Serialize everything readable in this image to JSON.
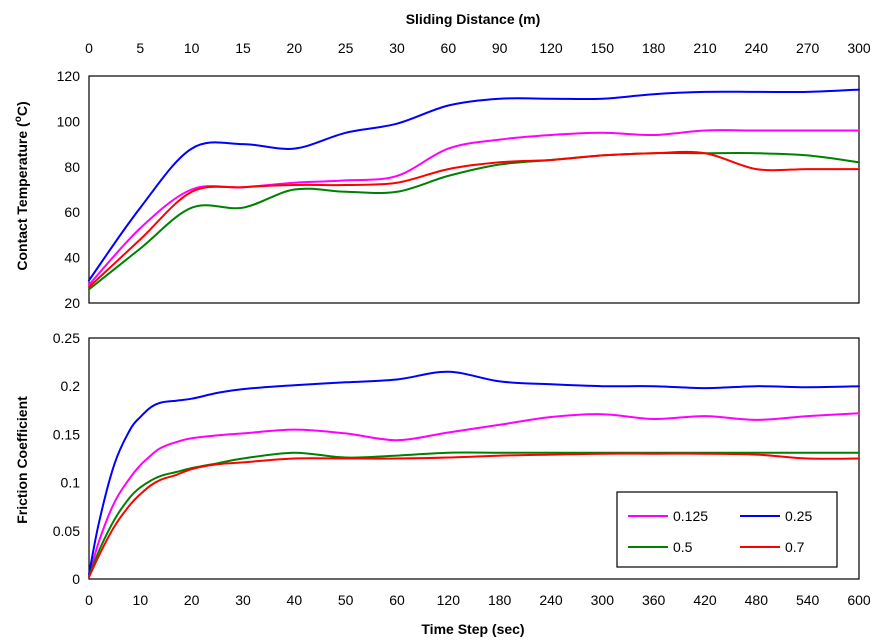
{
  "chart_data": [
    {
      "type": "line",
      "panel": "top",
      "xlabel_top": "Sliding Distance (m)",
      "ylabel": "Contact Temperature (°C)",
      "ylim": [
        20,
        120
      ],
      "yticks": [
        "20",
        "40",
        "60",
        "80",
        "100",
        "120"
      ],
      "x_top_ticks": [
        "0",
        "5",
        "10",
        "15",
        "20",
        "25",
        "30",
        "60",
        "90",
        "120",
        "150",
        "180",
        "210",
        "240",
        "270",
        "300"
      ],
      "x": [
        0,
        10,
        20,
        30,
        40,
        50,
        60,
        120,
        180,
        240,
        300,
        360,
        420,
        480,
        540,
        600
      ],
      "series": [
        {
          "name": "0.125",
          "color": "#ff00ff",
          "values": [
            28,
            53,
            70,
            71,
            73,
            74,
            76,
            88,
            92,
            94,
            95,
            94,
            96,
            96,
            96,
            96
          ]
        },
        {
          "name": "0.25",
          "color": "#0000ff",
          "values": [
            30,
            62,
            88,
            90,
            88,
            95,
            99,
            107,
            110,
            110,
            110,
            112,
            113,
            113,
            113,
            114
          ]
        },
        {
          "name": "0.5",
          "color": "#008000",
          "values": [
            26,
            44,
            62,
            62,
            70,
            69,
            69,
            76,
            81,
            83,
            85,
            86,
            86,
            86,
            85,
            82
          ]
        },
        {
          "name": "0.7",
          "color": "#ff0000",
          "values": [
            27,
            48,
            69,
            71,
            72,
            72,
            73,
            79,
            82,
            83,
            85,
            86,
            86,
            79,
            79,
            79
          ]
        }
      ]
    },
    {
      "type": "line",
      "panel": "bottom",
      "xlabel": "Time Step (sec)",
      "ylabel": "Friction Coefficient",
      "ylim": [
        0,
        0.25
      ],
      "yticks": [
        "0",
        "0.05",
        "0.1",
        "0.15",
        "0.2",
        "0.25"
      ],
      "xticks": [
        "0",
        "10",
        "20",
        "30",
        "40",
        "50",
        "60",
        "120",
        "180",
        "240",
        "300",
        "360",
        "420",
        "480",
        "540",
        "600"
      ],
      "x": [
        0,
        2,
        5,
        8,
        10,
        12,
        14,
        17,
        20,
        25,
        30,
        40,
        50,
        60,
        120,
        180,
        240,
        300,
        360,
        420,
        480,
        540,
        600
      ],
      "series": [
        {
          "name": "0.125",
          "color": "#ff00ff",
          "values": [
            0.003,
            0.04,
            0.08,
            0.105,
            0.118,
            0.128,
            0.136,
            0.142,
            0.146,
            0.149,
            0.151,
            0.155,
            0.151,
            0.144,
            0.152,
            0.16,
            0.168,
            0.171,
            0.166,
            0.169,
            0.165,
            0.169,
            0.172
          ]
        },
        {
          "name": "0.25",
          "color": "#0000ff",
          "values": [
            0.005,
            0.06,
            0.12,
            0.155,
            0.168,
            0.178,
            0.183,
            0.185,
            0.187,
            0.193,
            0.197,
            0.201,
            0.204,
            0.207,
            0.215,
            0.205,
            0.202,
            0.2,
            0.2,
            0.198,
            0.2,
            0.199,
            0.2
          ]
        },
        {
          "name": "0.5",
          "color": "#008000",
          "values": [
            0.003,
            0.03,
            0.062,
            0.085,
            0.095,
            0.102,
            0.107,
            0.111,
            0.115,
            0.12,
            0.125,
            0.131,
            0.126,
            0.128,
            0.131,
            0.131,
            0.131,
            0.131,
            0.131,
            0.131,
            0.131,
            0.131,
            0.131
          ]
        },
        {
          "name": "0.7",
          "color": "#ff0000",
          "values": [
            0.002,
            0.025,
            0.055,
            0.077,
            0.088,
            0.097,
            0.103,
            0.108,
            0.114,
            0.119,
            0.121,
            0.125,
            0.125,
            0.125,
            0.126,
            0.128,
            0.129,
            0.13,
            0.13,
            0.13,
            0.129,
            0.125,
            0.125
          ]
        }
      ]
    }
  ],
  "legend": {
    "placement": "bottom-right",
    "entries": [
      {
        "label": "0.125",
        "color": "#ff00ff"
      },
      {
        "label": "0.25",
        "color": "#0000ff"
      },
      {
        "label": "0.5",
        "color": "#008000"
      },
      {
        "label": "0.7",
        "color": "#ff0000"
      }
    ]
  }
}
